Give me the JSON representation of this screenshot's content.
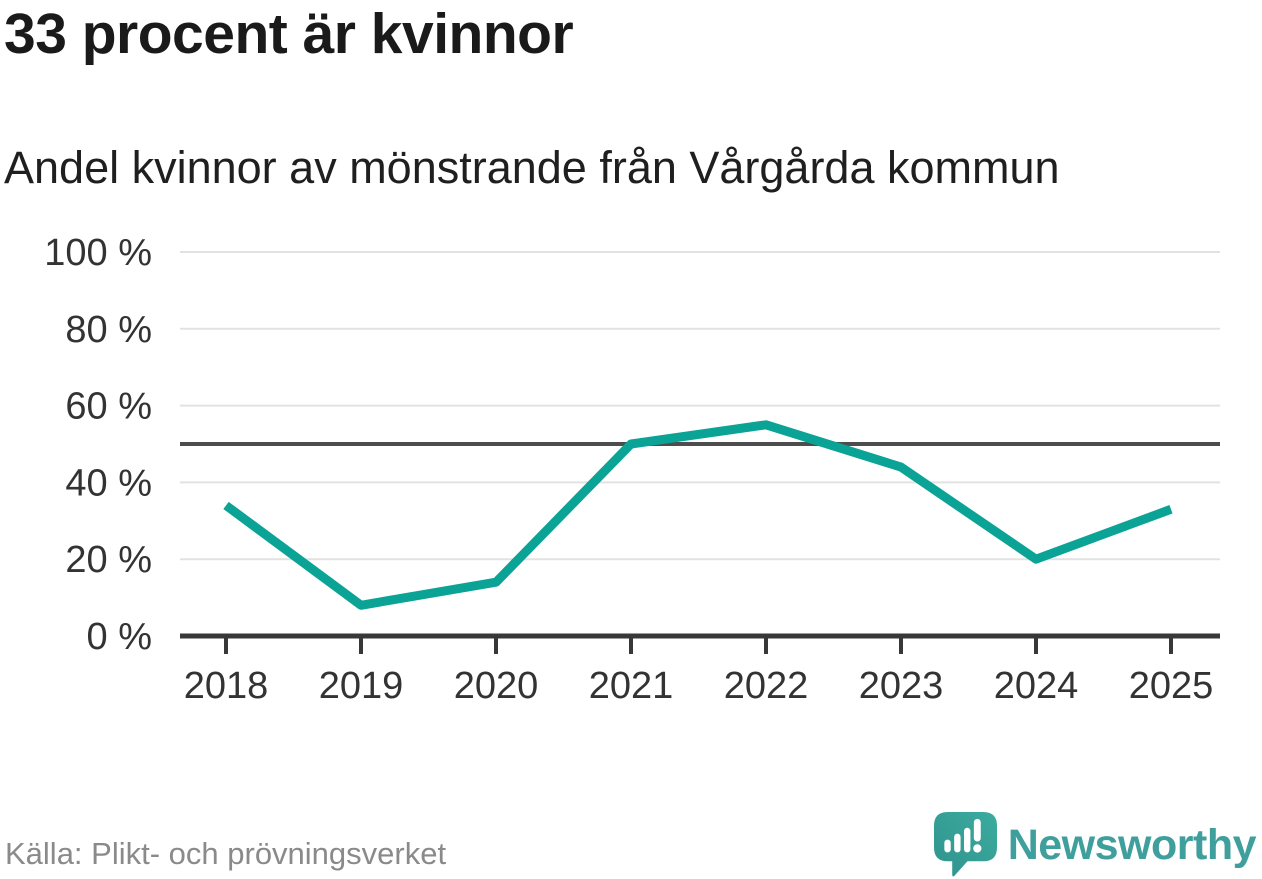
{
  "chart_data": {
    "type": "line",
    "title": "33 procent är kvinnor",
    "subtitle": "Andel kvinnor av mönstrande från Vårgårda kommun",
    "source": "Källa: Plikt- och prövningsverket",
    "categories": [
      "2018",
      "2019",
      "2020",
      "2021",
      "2022",
      "2023",
      "2024",
      "2025"
    ],
    "series": [
      {
        "name": "Andel kvinnor av mönstrande",
        "values": [
          34,
          8,
          14,
          50,
          55,
          44,
          20,
          33
        ]
      }
    ],
    "unit": "%",
    "ylim": [
      0,
      100
    ],
    "y_ticks": [
      0,
      20,
      40,
      60,
      80,
      100
    ],
    "y_tick_labels": [
      "0 %",
      "20 %",
      "40 %",
      "60 %",
      "80 %",
      "100 %"
    ],
    "reference_line": {
      "value": 50,
      "color": "#4d4d4d"
    },
    "grid": true,
    "legend": "none",
    "colors": {
      "line": "#0aa396",
      "gridline": "#e2e2e2",
      "axis": "#383838",
      "tick_label": "#333333"
    }
  },
  "branding": {
    "wordmark": "Newsworthy",
    "wordmark_color": "#3f9f9c",
    "logo_teal_light": "#3cab9f",
    "logo_teal_dark": "#2f938d"
  }
}
